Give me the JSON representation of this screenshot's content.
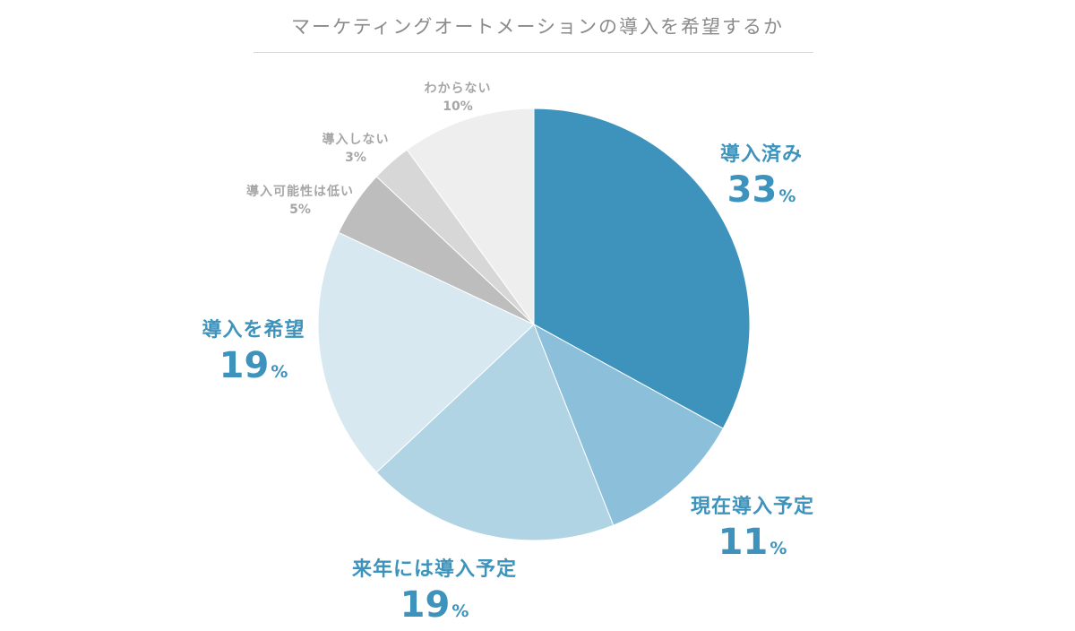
{
  "chart_data": {
    "type": "pie",
    "title": "マーケティングオートメーションの導入を希望するか",
    "percent_unit": "%",
    "slices": [
      {
        "label": "導入済み",
        "value": 33,
        "color": "#3d93bc"
      },
      {
        "label": "現在導入予定",
        "value": 11,
        "color": "#8bbfda"
      },
      {
        "label": "来年には導入予定",
        "value": 19,
        "color": "#b1d4e5"
      },
      {
        "label": "導入を希望",
        "value": 19,
        "color": "#d8e8f1"
      },
      {
        "label": "導入可能性は低い",
        "value": 5,
        "color": "#bdbdbd"
      },
      {
        "label": "導入しない",
        "value": 3,
        "color": "#d7d7d7"
      },
      {
        "label": "わからない",
        "value": 10,
        "color": "#eeeeee"
      }
    ]
  }
}
